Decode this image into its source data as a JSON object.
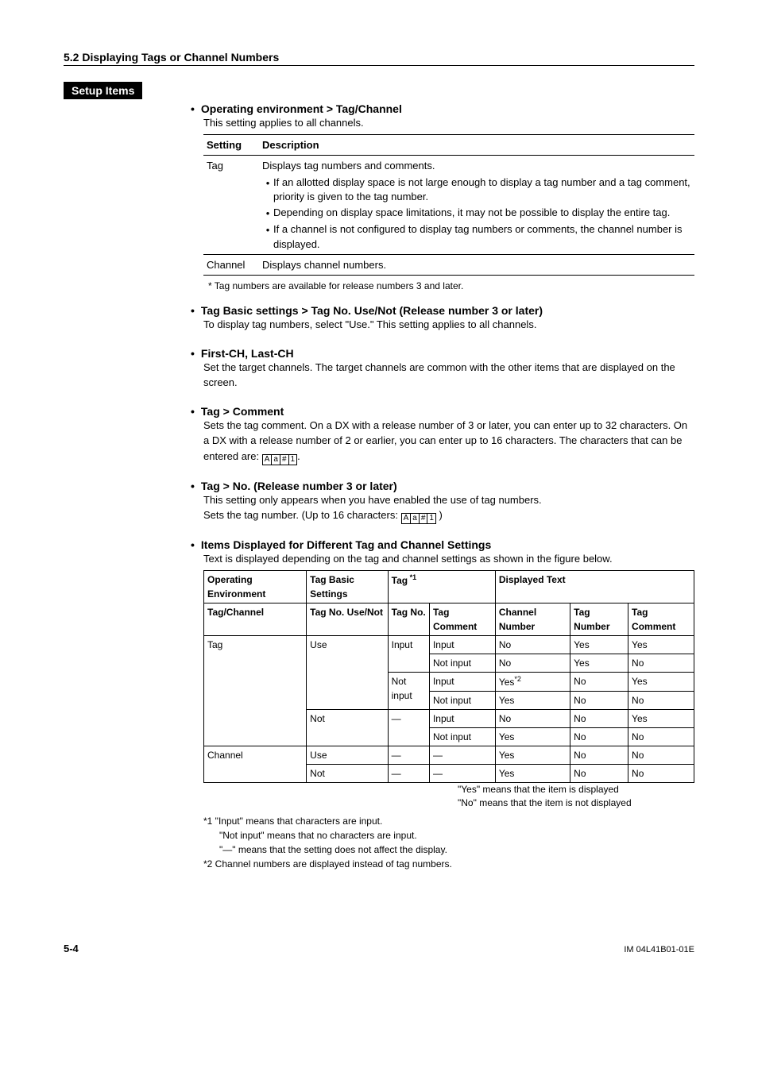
{
  "section_header": "5.2  Displaying Tags or Channel Numbers",
  "setup_label": "Setup Items",
  "items": {
    "op_env": {
      "title": "Operating environment > Tag/Channel",
      "subtitle": "This setting applies to all channels.",
      "table": {
        "h1": "Setting",
        "h2": "Description",
        "tag_label": "Tag",
        "tag_desc": "Displays tag numbers and comments.",
        "tag_b1": "If an allotted display space is not large enough to display a tag number and a tag comment, priority is given to the tag number.",
        "tag_b2": "Depending on display space limitations, it may not be possible to display the entire tag.",
        "tag_b3": "If a channel is not configured to display tag numbers or comments, the channel number is displayed.",
        "ch_label": "Channel",
        "ch_desc": "Displays channel numbers."
      },
      "footnote": "*   Tag numbers are available for release numbers 3 and later."
    },
    "tag_basic": {
      "title": "Tag Basic settings > Tag No. Use/Not (Release number 3 or later)",
      "body": "To display tag numbers, select \"Use.\" This setting applies to all channels."
    },
    "first_ch": {
      "title": "First-CH, Last-CH",
      "body": "Set the target channels. The target channels are common with the other items that are displayed on the screen."
    },
    "tag_comment": {
      "title": "Tag > Comment",
      "body_a": "Sets the tag comment. On a DX with a release number of 3 or later, you can enter up to 32 characters. On a DX with a release number of 2 or earlier, you can enter up to 16 characters. The characters that can be entered are: ",
      "body_b": "."
    },
    "tag_no": {
      "title": "Tag > No. (Release number 3 or later)",
      "body_a": "This setting only appears when you have enabled the use of tag numbers.",
      "body_b": "Sets the tag number. (Up to 16 characters: ",
      "body_c": " )"
    },
    "items_disp": {
      "title": "Items Displayed for Different Tag and Channel Settings",
      "subtitle": "Text is displayed depending on the tag and channel settings as shown in the figure below.",
      "headers": {
        "op_env": "Operating Environment",
        "tag_basic": "Tag Basic Settings",
        "tag": "Tag",
        "displayed": "Displayed Text",
        "tag_channel": "Tag/Channel",
        "tag_no_use": "Tag No. Use/Not",
        "tag_no": "Tag No.",
        "tag_comment": "Tag Comment",
        "ch_num": "Channel Number",
        "tag_num": "Tag Number",
        "tag_comment2": "Tag Comment"
      },
      "rows": [
        {
          "c1": "Tag",
          "c2": "Use",
          "c3": "Input",
          "c4": "Input",
          "c5": "No",
          "c6": "Yes",
          "c7": "Yes"
        },
        {
          "c1": "",
          "c2": "",
          "c3": "",
          "c4": "Not input",
          "c5": "No",
          "c6": "Yes",
          "c7": "No"
        },
        {
          "c1": "",
          "c2": "",
          "c3": "Not input",
          "c4": "Input",
          "c5": "Yes",
          "c6": "No",
          "c7": "Yes",
          "c5_sup": "*2"
        },
        {
          "c1": "",
          "c2": "",
          "c3": "",
          "c4": "Not input",
          "c5": "Yes",
          "c6": "No",
          "c7": "No"
        },
        {
          "c1": "",
          "c2": "Not",
          "c3": "—",
          "c4": "Input",
          "c5": "No",
          "c6": "No",
          "c7": "Yes"
        },
        {
          "c1": "",
          "c2": "",
          "c3": "",
          "c4": "Not input",
          "c5": "Yes",
          "c6": "No",
          "c7": "No"
        },
        {
          "c1": "Channel",
          "c2": "Use",
          "c3": "—",
          "c4": "—",
          "c5": "Yes",
          "c6": "No",
          "c7": "No"
        },
        {
          "c1": "",
          "c2": "Not",
          "c3": "—",
          "c4": "—",
          "c5": "Yes",
          "c6": "No",
          "c7": "No"
        }
      ],
      "legend1": "\"Yes\" means that the item is displayed",
      "legend2": "\"No\" means that the item is not displayed",
      "fn1": "*1  \"Input\" means that characters are input.",
      "fn1b": "\"Not input\" means that no characters are input.",
      "fn1c": " \"—\" means that the setting does not affect the display.",
      "fn2": "*2  Channel numbers are displayed instead of tag numbers."
    }
  },
  "sup1": " *1",
  "footer": {
    "page": "5-4",
    "doc": "IM 04L41B01-01E"
  },
  "charbox": [
    "A",
    "a",
    "#",
    "1"
  ]
}
